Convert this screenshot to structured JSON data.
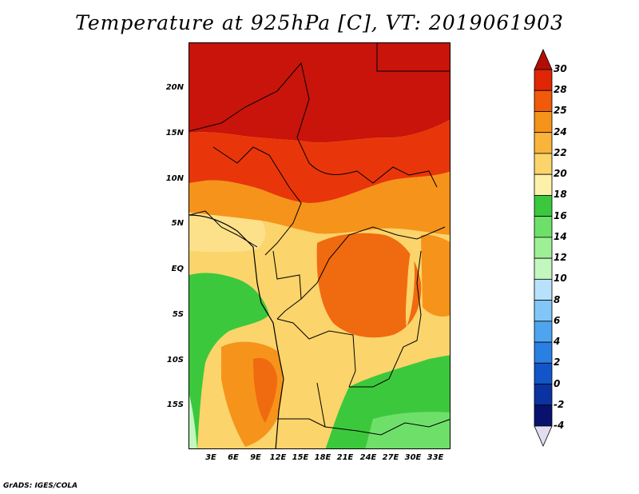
{
  "title": "Temperature at 925hPa [C], VT: 2019061903",
  "credit": "GrADS: IGES/COLA",
  "map": {
    "lat_labels": [
      "20N",
      "15N",
      "10N",
      "5N",
      "EQ",
      "5S",
      "10S",
      "15S"
    ],
    "lon_labels": [
      "3E",
      "6E",
      "9E",
      "12E",
      "15E",
      "18E",
      "21E",
      "24E",
      "27E",
      "30E",
      "33E"
    ]
  },
  "colorbar": {
    "labels": [
      "30",
      "28",
      "25",
      "24",
      "22",
      "20",
      "18",
      "16",
      "14",
      "12",
      "10",
      "8",
      "6",
      "4",
      "2",
      "0",
      "-2",
      "-4"
    ],
    "colors": [
      "#b30e04",
      "#e02505",
      "#f05a0a",
      "#f6931b",
      "#f9b53b",
      "#fbd46b",
      "#fdf0a8",
      "#3cc83c",
      "#6ee06a",
      "#9ef095",
      "#c4f6c0",
      "#b8e2fb",
      "#82c6f8",
      "#4fa4ef",
      "#2a7fe3",
      "#1255c8",
      "#0a32a0",
      "#08126e",
      "#e3dcf3"
    ]
  }
}
